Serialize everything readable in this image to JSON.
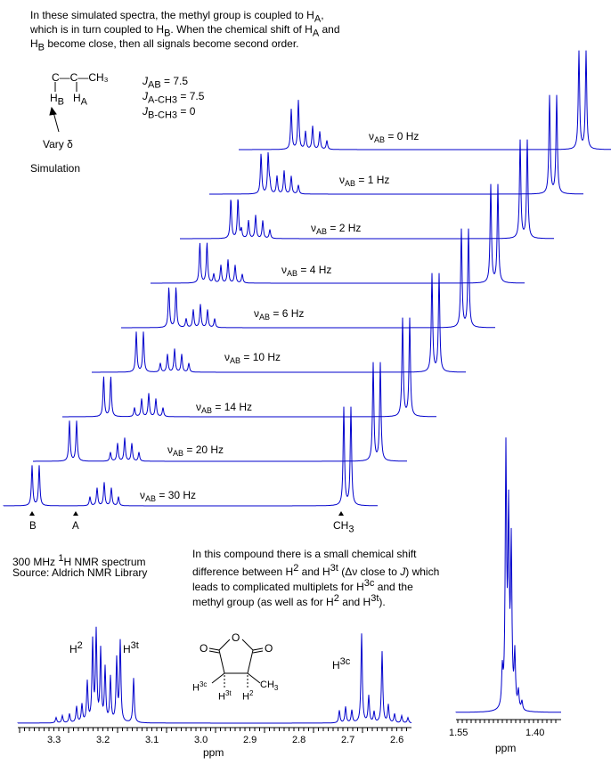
{
  "intro": {
    "line1": "In these simulated spectra, the methyl group is coupled to H",
    "line1_sub": "A",
    "line1_end": ",",
    "line2_a": "which is in turn coupled to H",
    "line2_sub": "B",
    "line2_b": ".  When the chemical shift of H",
    "line2_sub2": "A",
    "line2_c": " and",
    "line3_a": "H",
    "line3_sub": "B",
    "line3_b": " become close, then all signals become second order."
  },
  "fragment": {
    "chain": "C—C—CH₃",
    "hb": "H",
    "hb_sub": "B",
    "ha": "H",
    "ha_sub": "A",
    "vary": "Vary δ",
    "simulation": "Simulation"
  },
  "couplings": {
    "jab": "J",
    "jab_sub": "AB",
    "jab_val": " = 7.5",
    "jach3": "J",
    "jach3_sub": "A-CH3",
    "jach3_val": " = 7.5",
    "jbch3": "J",
    "jbch3_sub": "B-CH3",
    "jbch3_val": " = 0"
  },
  "spectra_labels": [
    {
      "nu": "ν",
      "sub": "AB",
      "val": " = 0 Hz"
    },
    {
      "nu": "ν",
      "sub": "AB",
      "val": " = 1 Hz"
    },
    {
      "nu": "ν",
      "sub": "AB",
      "val": " = 2 Hz"
    },
    {
      "nu": "ν",
      "sub": "AB",
      "val": " = 4 Hz"
    },
    {
      "nu": "ν",
      "sub": "AB",
      "val": " = 6 Hz"
    },
    {
      "nu": "ν",
      "sub": "AB",
      "val": " = 10 Hz"
    },
    {
      "nu": "ν",
      "sub": "AB",
      "val": " = 14 Hz"
    },
    {
      "nu": "ν",
      "sub": "AB",
      "val": " = 20 Hz"
    },
    {
      "nu": "ν",
      "sub": "AB",
      "val": " = 30 Hz"
    }
  ],
  "markers": {
    "b": "B",
    "a": "A",
    "ch3": "CH",
    "ch3_sub": "3"
  },
  "source": {
    "line1_a": "300 MHz ",
    "line1_sup": "1",
    "line1_b": "H NMR spectrum",
    "line2": "Source: Aldrich NMR Library"
  },
  "note": {
    "l1": "In this compound there is a small chemical shift",
    "l2_a": "difference between H",
    "l2_sup1": "2",
    "l2_b": " and H",
    "l2_sup2": "3t",
    "l2_c": " (Δν close to ",
    "l2_j": "J",
    "l2_d": ") which",
    "l3_a": "leads to complicated multiplets for H",
    "l3_sup": "3c",
    "l3_b": " and the",
    "l4_a": "methyl group (as well as for H",
    "l4_sup1": "2",
    "l4_b": " and H",
    "l4_sup2": "3t",
    "l4_c": ")."
  },
  "peak_labels": {
    "h2": "H",
    "h2_sup": "2",
    "h3t": "H",
    "h3t_sup": "3t",
    "h3c": "H",
    "h3c_sup": "3c"
  },
  "molecule": {
    "o1": "O",
    "o2": "O",
    "o3": "O",
    "h3c": "H",
    "h3c_sup": "3c",
    "h3t": "H",
    "h3t_sup": "3t",
    "h2": "H",
    "h2_sup": "2",
    "ch3": "CH",
    "ch3_sub": "3"
  },
  "axis_main": {
    "ticks": [
      "3.3",
      "3.2",
      "3.1",
      "3.0",
      "2.9",
      "2.8",
      "2.7",
      "2.6"
    ],
    "unit": "ppm"
  },
  "axis_inset": {
    "ticks": [
      "1.55",
      "1.40"
    ],
    "unit": "ppm"
  },
  "colors": {
    "spectrum": "#0000cc",
    "text": "#000000"
  }
}
